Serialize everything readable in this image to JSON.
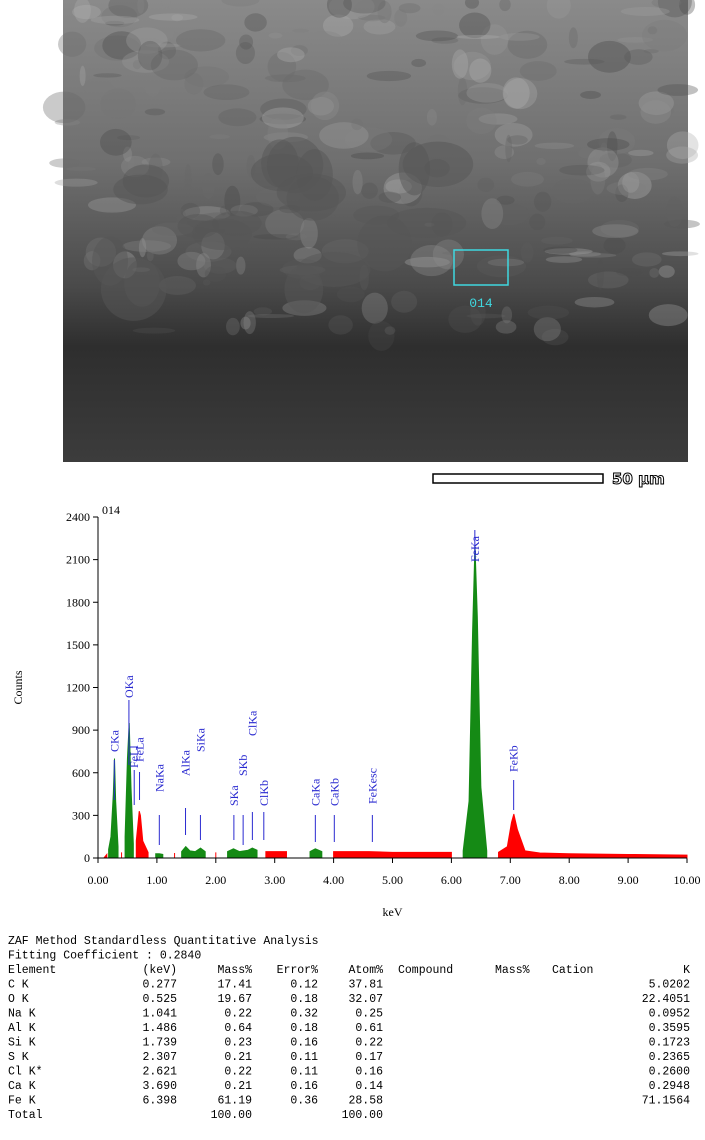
{
  "image": {
    "region_label": "014",
    "scale_bar": "50 µm"
  },
  "chart_data": {
    "type": "area",
    "title": "014",
    "x_label": "keV",
    "y_label": "Counts",
    "x": [
      0.1,
      0.15,
      0.18,
      0.22,
      0.26,
      0.28,
      0.3,
      0.34,
      0.4,
      0.46,
      0.5,
      0.53,
      0.56,
      0.6,
      0.65,
      0.7,
      0.72,
      0.76,
      0.85,
      0.98,
      1.04,
      1.1,
      1.3,
      1.42,
      1.49,
      1.56,
      1.65,
      1.74,
      1.82,
      2.0,
      2.2,
      2.3,
      2.4,
      2.55,
      2.62,
      2.7,
      2.85,
      3.2,
      3.6,
      3.69,
      3.8,
      4.0,
      4.6,
      5.0,
      5.6,
      6.0,
      6.2,
      6.3,
      6.36,
      6.4,
      6.44,
      6.5,
      6.6,
      6.8,
      6.95,
      7.02,
      7.06,
      7.12,
      7.25,
      7.5,
      8.0,
      9.0,
      10.0
    ],
    "series": [
      {
        "color": "#ff0000",
        "values": [
          0,
          25,
          null,
          null,
          null,
          null,
          null,
          null,
          40,
          null,
          null,
          null,
          null,
          null,
          120,
          330,
          300,
          120,
          40,
          null,
          null,
          null,
          35,
          null,
          null,
          null,
          null,
          null,
          null,
          40,
          null,
          null,
          null,
          null,
          null,
          null,
          45,
          45,
          null,
          null,
          null,
          45,
          45,
          40,
          40,
          40,
          null,
          null,
          null,
          null,
          null,
          null,
          null,
          40,
          80,
          250,
          310,
          200,
          50,
          35,
          30,
          25,
          20
        ]
      },
      {
        "color": "#158a15",
        "values": [
          null,
          null,
          60,
          150,
          450,
          700,
          400,
          80,
          null,
          150,
          700,
          950,
          500,
          100,
          null,
          null,
          null,
          null,
          null,
          30,
          30,
          25,
          null,
          45,
          80,
          50,
          45,
          70,
          45,
          null,
          45,
          65,
          45,
          55,
          70,
          55,
          null,
          null,
          45,
          65,
          45,
          null,
          null,
          null,
          null,
          null,
          50,
          400,
          1600,
          2200,
          1700,
          500,
          50,
          null,
          null,
          null,
          null,
          null,
          null,
          null,
          null,
          null,
          null
        ]
      }
    ],
    "xlim": [
      0,
      10
    ],
    "xticks": [
      {
        "value": 0,
        "label": "0.00"
      },
      {
        "value": 1,
        "label": "1.00"
      },
      {
        "value": 2,
        "label": "2.00"
      },
      {
        "value": 3,
        "label": "3.00"
      },
      {
        "value": 4,
        "label": "4.00"
      },
      {
        "value": 5,
        "label": "5.00"
      },
      {
        "value": 6,
        "label": "6.00"
      },
      {
        "value": 7,
        "label": "7.00"
      },
      {
        "value": 8,
        "label": "8.00"
      },
      {
        "value": 9,
        "label": "9.00"
      },
      {
        "value": 10,
        "label": "10.00"
      }
    ],
    "ylim": [
      0,
      2400
    ],
    "yticks": [
      0,
      300,
      600,
      900,
      1200,
      1500,
      1800,
      2100,
      2400
    ],
    "peak_color": "#2a2ad0",
    "peaks": [
      {
        "label": "CKa",
        "x": 0.277
      },
      {
        "label": "OKa",
        "x": 0.525
      },
      {
        "label": "FeLl",
        "x": 0.615
      },
      {
        "label": "FeLa",
        "x": 0.705
      },
      {
        "label": "NaKa",
        "x": 1.041
      },
      {
        "label": "AlKa",
        "x": 1.486
      },
      {
        "label": "SiKa",
        "x": 1.739
      },
      {
        "label": "SKa",
        "x": 2.307
      },
      {
        "label": "SKb",
        "x": 2.464
      },
      {
        "label": "ClKa",
        "x": 2.621
      },
      {
        "label": "ClKb",
        "x": 2.815
      },
      {
        "label": "CaKa",
        "x": 3.69
      },
      {
        "label": "CaKb",
        "x": 4.012
      },
      {
        "label": "FeKesc",
        "x": 4.658
      },
      {
        "label": "FeKa",
        "x": 6.398
      },
      {
        "label": "FeKb",
        "x": 7.057
      }
    ]
  },
  "report": {
    "title": "ZAF Method Standardless Quantitative Analysis",
    "fitting": "Fitting Coefficient : 0.2840",
    "columns": [
      "Element",
      "(keV)",
      "Mass%",
      "Error%",
      "Atom%",
      "Compound",
      "Mass%",
      "Cation",
      "K"
    ],
    "rows": [
      [
        "C K",
        "0.277",
        "17.41",
        "0.12",
        "37.81",
        "5.0202"
      ],
      [
        "O K",
        "0.525",
        "19.67",
        "0.18",
        "32.07",
        "22.4051"
      ],
      [
        "Na K",
        "1.041",
        "0.22",
        "0.32",
        "0.25",
        "0.0952"
      ],
      [
        "Al K",
        "1.486",
        "0.64",
        "0.18",
        "0.61",
        "0.3595"
      ],
      [
        "Si K",
        "1.739",
        "0.23",
        "0.16",
        "0.22",
        "0.1723"
      ],
      [
        "S K",
        "2.307",
        "0.21",
        "0.11",
        "0.17",
        "0.2365"
      ],
      [
        "Cl K*",
        "2.621",
        "0.22",
        "0.11",
        "0.16",
        "0.2600"
      ],
      [
        "Ca K",
        "3.690",
        "0.21",
        "0.16",
        "0.14",
        "0.2948"
      ],
      [
        "Fe K",
        "6.398",
        "61.19",
        "0.36",
        "28.58",
        "71.1564"
      ]
    ],
    "total": {
      "label": "Total",
      "mass": "100.00",
      "atom": "100.00"
    }
  }
}
